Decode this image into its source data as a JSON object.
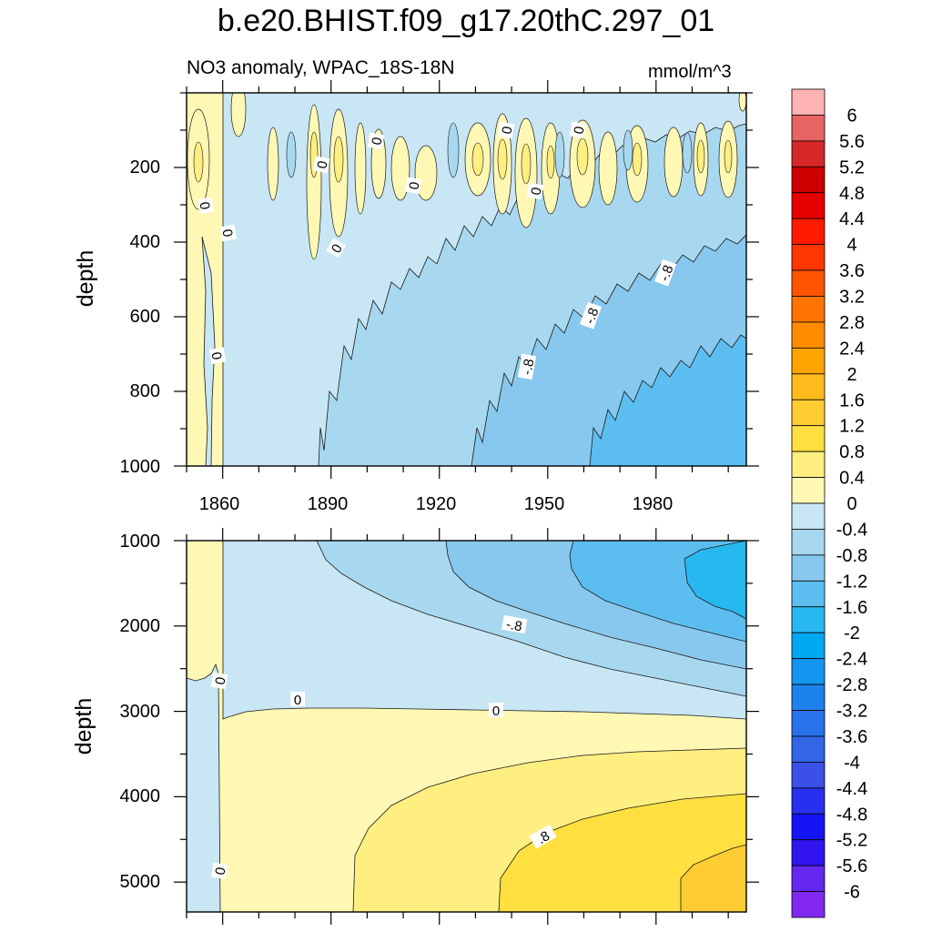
{
  "chart_data": {
    "type": "contour",
    "title": "b.e20.BHIST.f09_g17.20thC.297_01",
    "subtitle": "NO3 anomaly, WPAC_18S-18N",
    "units": "mmol/m^3",
    "x_ticks": [
      "1860",
      "1890",
      "1920",
      "1950",
      "1980"
    ],
    "x_tick_values": [
      1860,
      1890,
      1920,
      1950,
      1980
    ],
    "xlim": [
      1850,
      2005
    ],
    "panels": [
      {
        "name": "upper",
        "ylabel": "depth",
        "ylim": [
          0,
          1000
        ],
        "y_ticks": [
          "200",
          "400",
          "600",
          "800",
          "1000"
        ],
        "y_tick_values": [
          200,
          400,
          600,
          800,
          1000
        ],
        "contour_labels": [
          "0",
          "0",
          "0",
          "0",
          "0",
          "0",
          "0",
          "0",
          "0",
          "0",
          "-.8",
          "-.8",
          "-.8"
        ]
      },
      {
        "name": "lower",
        "ylabel": "depth",
        "ylim": [
          1000,
          5350
        ],
        "y_ticks": [
          "1000",
          "2000",
          "3000",
          "4000",
          "5000"
        ],
        "y_tick_values": [
          1000,
          2000,
          3000,
          4000,
          5000
        ],
        "contour_labels": [
          "-.8",
          "0",
          "0",
          "0",
          "0",
          ".8"
        ]
      }
    ],
    "colorbar": {
      "labels": [
        "6",
        "5.6",
        "5.2",
        "4.8",
        "4.4",
        "4",
        "3.6",
        "3.2",
        "2.8",
        "2.4",
        "2",
        "1.6",
        "1.2",
        "0.8",
        "0.4",
        "0",
        "-0.4",
        "-0.8",
        "-1.2",
        "-1.6",
        "-2",
        "-2.4",
        "-2.8",
        "-3.2",
        "-3.6",
        "-4",
        "-4.4",
        "-4.8",
        "-5.2",
        "-5.6",
        "-6"
      ],
      "colors": [
        "#ffb4b4",
        "#e86464",
        "#d62828",
        "#cc0000",
        "#e80000",
        "#ff1a00",
        "#ff3600",
        "#ff5500",
        "#ff7400",
        "#ff8c00",
        "#ffa500",
        "#ffbb1e",
        "#ffcc33",
        "#ffe040",
        "#ffee80",
        "#fff8b4",
        "#c8e6f4",
        "#a8d8f0",
        "#88c8ee",
        "#5cbef0",
        "#28b8f0",
        "#00a8f0",
        "#1496f0",
        "#1e82ec",
        "#2872ec",
        "#3266e6",
        "#3a50e6",
        "#2830f0",
        "#1414f5",
        "#3214f0",
        "#6428f0",
        "#8228f0"
      ]
    }
  }
}
